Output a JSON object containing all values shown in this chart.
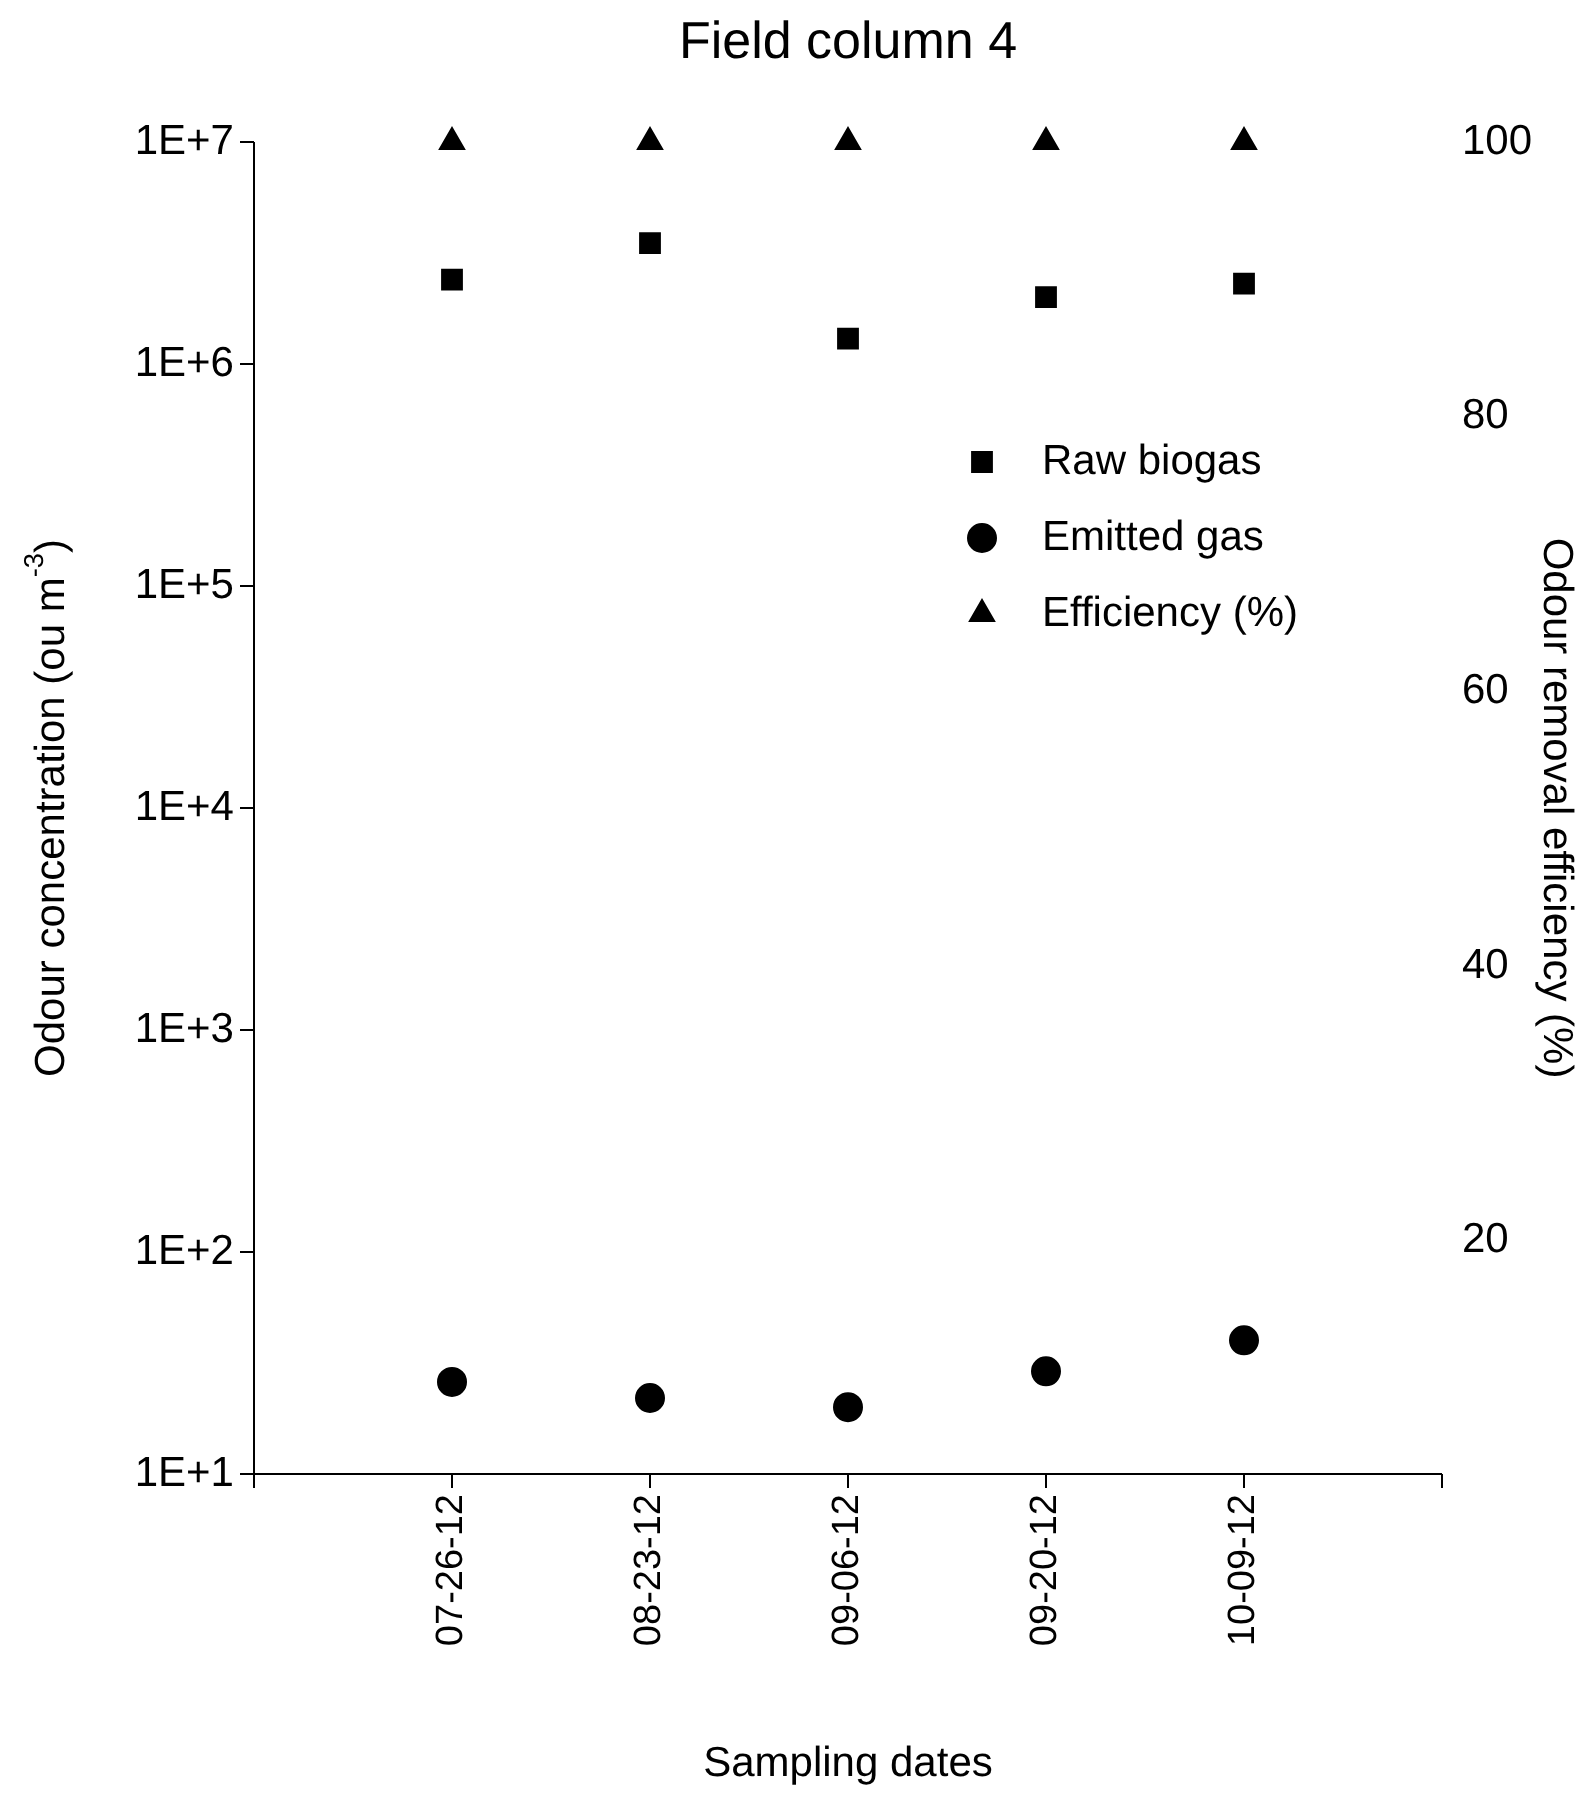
{
  "chart_data": {
    "type": "scatter",
    "title": "Field column 4",
    "xlabel": "Sampling dates",
    "ylabel": "Odour concentration (ou m$^{-3}$)",
    "y2label": "Odour removal efficiency (%)",
    "categories": [
      "07-26-12",
      "08-23-12",
      "09-06-12",
      "09-20-12",
      "10-09-12"
    ],
    "series": [
      {
        "name": "Raw biogas",
        "color": "#000000",
        "marker": "square",
        "values": [
          2400000,
          3500000,
          1300000,
          2000000,
          2300000
        ]
      },
      {
        "name": "Emitted gas",
        "color": "#000000",
        "marker": "circle",
        "values": [
          26,
          22,
          20,
          29,
          40
        ]
      },
      {
        "name": "Efficiency (%)",
        "color": "#000000",
        "marker": "triangle",
        "axis": "y2",
        "values": [
          100,
          100,
          100,
          100,
          100
        ]
      }
    ],
    "log": "y",
    "ylim": [
      10,
      10000000
    ],
    "yticks": [
      {
        "value": 10,
        "label": "1E+1"
      },
      {
        "value": 100,
        "label": "1E+2"
      },
      {
        "value": 1000,
        "label": "1E+3"
      },
      {
        "value": 10000,
        "label": "1E+4"
      },
      {
        "value": 100000,
        "label": "1E+5"
      },
      {
        "value": 1000000,
        "label": "1E+6"
      },
      {
        "value": 10000000,
        "label": "1E+7"
      }
    ],
    "y2lim": [
      3,
      100
    ],
    "y2ticks": [
      20,
      40,
      60,
      80,
      100
    ],
    "grid": false,
    "legend": "top right"
  }
}
